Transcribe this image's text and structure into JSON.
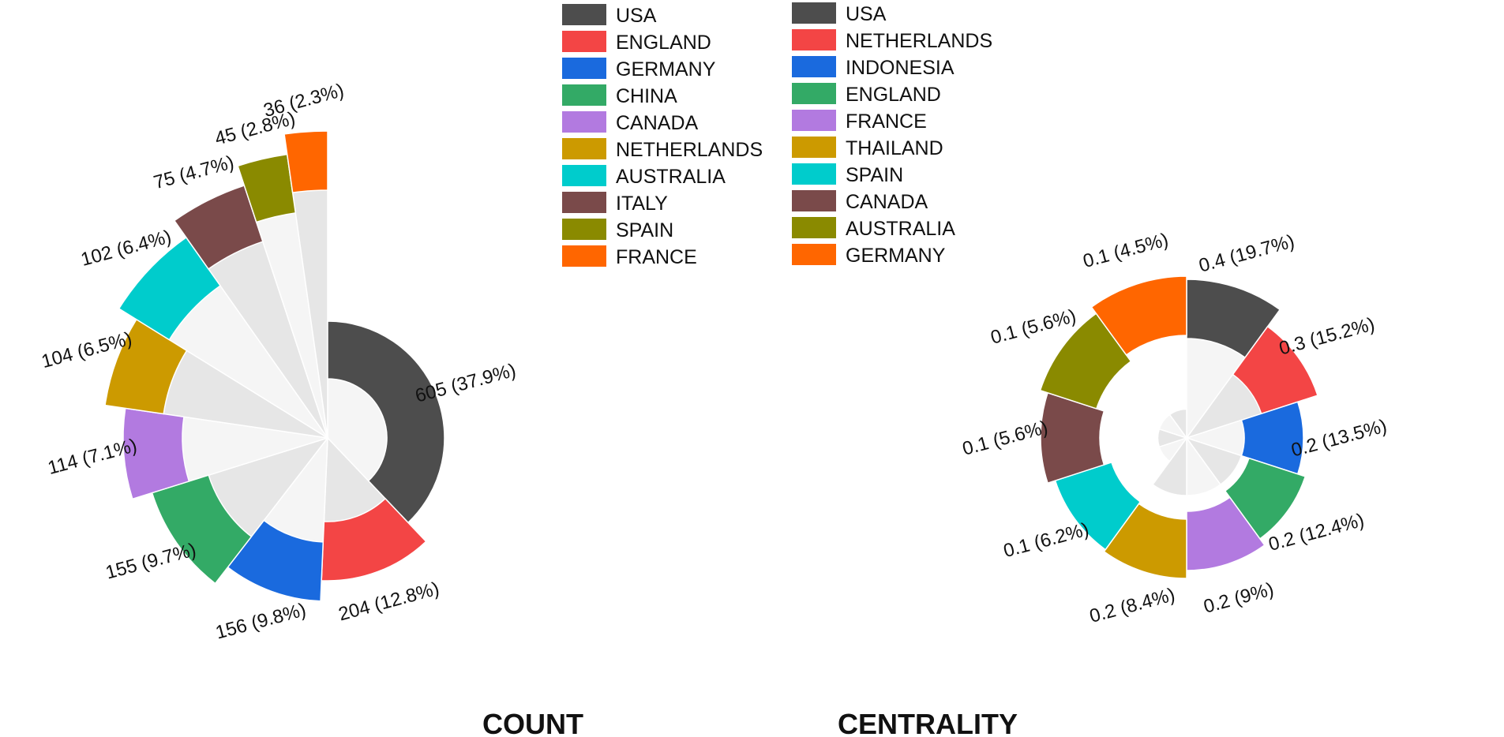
{
  "chart_data": [
    {
      "type": "polar-bar",
      "title": "COUNT",
      "categories": [
        "USA",
        "ENGLAND",
        "GERMANY",
        "CHINA",
        "CANADA",
        "NETHERLANDS",
        "AUSTRALIA",
        "ITALY",
        "SPAIN",
        "FRANCE"
      ],
      "values": [
        605,
        204,
        156,
        155,
        114,
        104,
        102,
        75,
        45,
        36
      ],
      "labels": [
        "605 (37.9%)",
        "204 (12.8%)",
        "156 (9.8%)",
        "155 (9.7%)",
        "114 (7.1%)",
        "104 (6.5%)",
        "102 (6.4%)",
        "75 (4.7%)",
        "45 (2.8%)",
        "36 (2.3%)"
      ],
      "colors": [
        "#4d4d4d",
        "#f34545",
        "#1a6ade",
        "#33aa66",
        "#b27ae0",
        "#cc9a00",
        "#00cccc",
        "#7a4a4a",
        "#8a8a00",
        "#ff6600"
      ]
    },
    {
      "type": "polar-bar",
      "title": "CENTRALITY",
      "categories": [
        "USA",
        "NETHERLANDS",
        "INDONESIA",
        "ENGLAND",
        "FRANCE",
        "THAILAND",
        "SPAIN",
        "CANADA",
        "AUSTRALIA",
        "GERMANY"
      ],
      "values": [
        0.4,
        0.3,
        0.2,
        0.2,
        0.2,
        0.2,
        0.1,
        0.1,
        0.1,
        0.1
      ],
      "labels": [
        "0.4 (19.7%)",
        "0.3 (15.2%)",
        "0.2 (13.5%)",
        "0.2 (12.4%)",
        "0.2 (9%)",
        "0.2 (8.4%)",
        "0.1 (6.2%)",
        "0.1 (5.6%)",
        "0.1 (5.6%)",
        "0.1 (4.5%)"
      ],
      "colors": [
        "#4d4d4d",
        "#f34545",
        "#1a6ade",
        "#33aa66",
        "#b27ae0",
        "#cc9a00",
        "#00cccc",
        "#7a4a4a",
        "#8a8a00",
        "#ff6600"
      ]
    }
  ],
  "legends": [
    {
      "entries": [
        "USA",
        "ENGLAND",
        "GERMANY",
        "CHINA",
        "CANADA",
        "NETHERLANDS",
        "AUSTRALIA",
        "ITALY",
        "SPAIN",
        "FRANCE"
      ]
    },
    {
      "entries": [
        "USA",
        "NETHERLANDS",
        "INDONESIA",
        "ENGLAND",
        "FRANCE",
        "THAILAND",
        "SPAIN",
        "CANADA",
        "AUSTRALIA",
        "GERMANY"
      ]
    }
  ]
}
